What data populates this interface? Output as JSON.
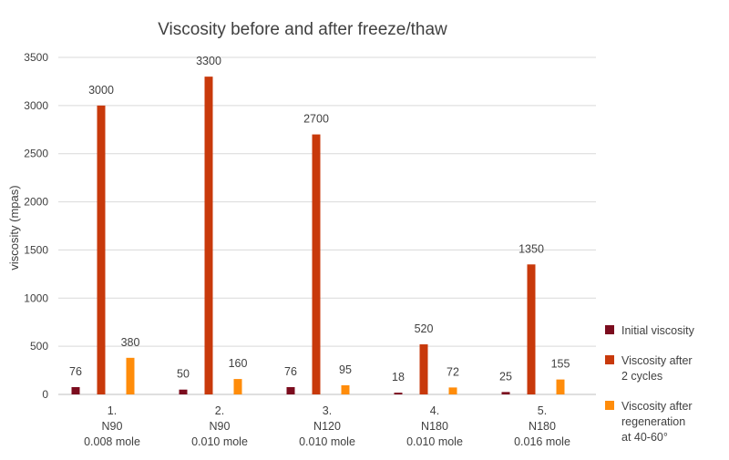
{
  "chart_data": {
    "type": "bar",
    "title": "Viscosity before and after freeze/thaw",
    "ylabel": "viscosity (mpas)",
    "xlabel": "",
    "ylim": [
      0,
      3500
    ],
    "yticks": [
      0,
      500,
      1000,
      1500,
      2000,
      2500,
      3000,
      3500
    ],
    "grid": true,
    "legend_position": "right",
    "categories": [
      [
        "1.",
        "N90",
        "0.008 mole"
      ],
      [
        "2.",
        "N90",
        "0.010 mole"
      ],
      [
        "3.",
        "N120",
        "0.010 mole"
      ],
      [
        "4.",
        "N180",
        "0.010 mole"
      ],
      [
        "5.",
        "N180",
        "0.016 mole"
      ]
    ],
    "series": [
      {
        "name": "Initial viscosity",
        "legend_lines": [
          "Initial viscosity"
        ],
        "color": "#7B0C1E",
        "values": [
          76,
          50,
          76,
          18,
          25
        ]
      },
      {
        "name": "Viscosity after 2 cycles",
        "legend_lines": [
          "Viscosity after",
          "2 cycles"
        ],
        "color": "#C8390B",
        "values": [
          3000,
          3300,
          2700,
          520,
          1350
        ]
      },
      {
        "name": "Viscosity after regeneration at 40-60°",
        "legend_lines": [
          "Viscosity after",
          "regeneration",
          "at 40-60°"
        ],
        "color": "#FF8C0A",
        "values": [
          380,
          160,
          95,
          72,
          155
        ]
      }
    ]
  }
}
